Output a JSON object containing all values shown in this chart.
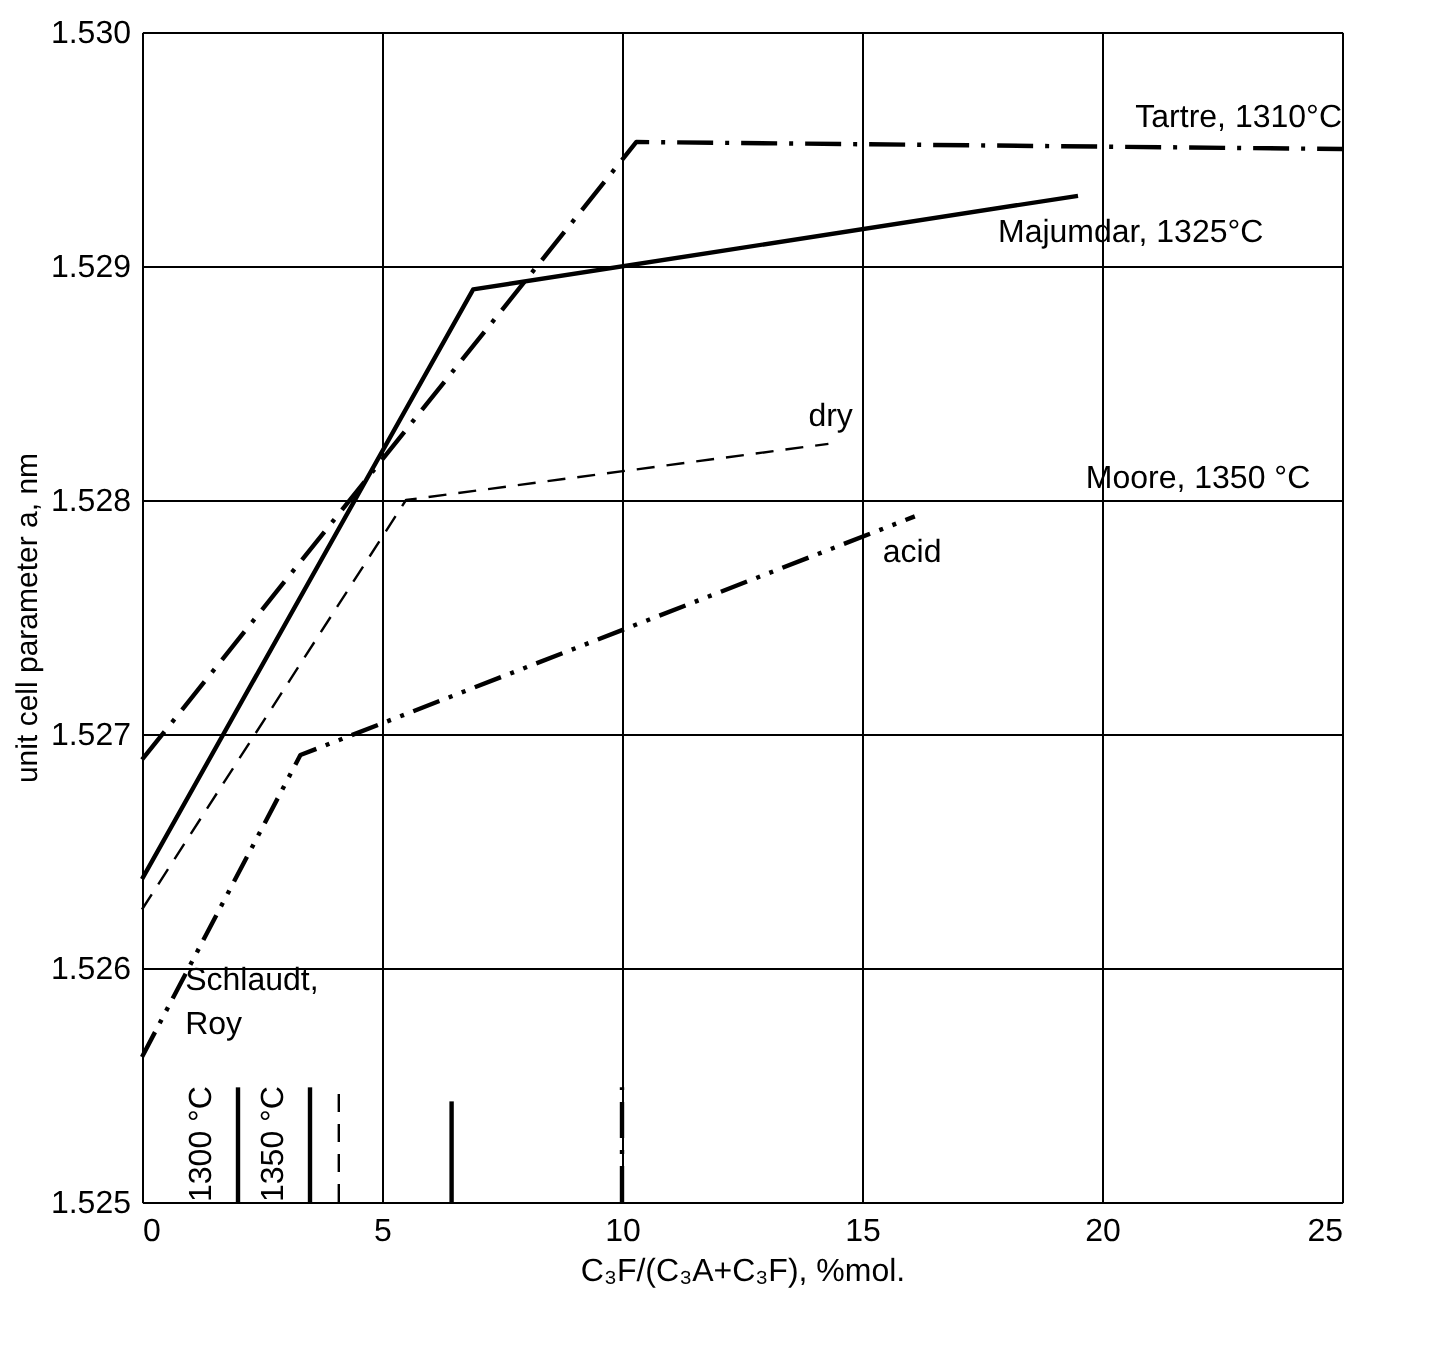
{
  "chart_data": {
    "type": "line",
    "xlabel": "C₃F/(C₃A+C₃F), %mol.",
    "ylabel": "unit cell parameter a, nm",
    "xlim": [
      0,
      25
    ],
    "xticks": [
      0,
      5,
      10,
      15,
      20,
      25
    ],
    "ylim": [
      1.525,
      1.53
    ],
    "yticks": [
      1.525,
      1.526,
      1.527,
      1.528,
      1.529,
      {
        "value": 1.53,
        "label": "1.530"
      }
    ],
    "grid": true,
    "marker": "none",
    "series": [
      {
        "name": "Tartre, 1310°C",
        "color": "#000000",
        "line_style": "dashdot",
        "x": [
          0,
          10.3,
          25
        ],
        "values": [
          1.52689,
          1.52953,
          1.5295
        ]
      },
      {
        "name": "Majumdar, 1325°C",
        "color": "#000000",
        "line_style": "solid",
        "x": [
          0,
          6.9,
          19.5
        ],
        "values": [
          1.52638,
          1.5289,
          1.5293
        ]
      },
      {
        "name": "dry",
        "color": "#000000",
        "line_style": "dashed",
        "x": [
          0,
          5.5,
          14.3
        ],
        "values": [
          1.52625,
          1.528,
          1.52824
        ]
      },
      {
        "name": "acid",
        "color": "#000000",
        "line_style": "dashdotdot",
        "x": [
          0,
          3.3,
          16.1
        ],
        "values": [
          1.52562,
          1.52691,
          1.52793
        ]
      },
      {
        "color": "#000000",
        "line_style": "solid",
        "x": [
          2,
          2
        ],
        "values": [
          1.525,
          1.52549
        ]
      },
      {
        "color": "#000000",
        "line_style": "solid",
        "x": [
          3.5,
          3.5
        ],
        "values": [
          1.525,
          1.52549
        ]
      },
      {
        "color": "#000000",
        "line_style": "dashed",
        "x": [
          4.1,
          4.1
        ],
        "values": [
          1.525,
          1.52549
        ]
      },
      {
        "color": "#000000",
        "line_style": "solid",
        "x": [
          6.45,
          6.45
        ],
        "values": [
          1.525,
          1.52543
        ]
      },
      {
        "color": "#000000",
        "line_style": "dashdot",
        "x": [
          10,
          10
        ],
        "values": [
          1.525,
          1.52549
        ]
      }
    ],
    "annotations": [
      "Moore, 1350 °C",
      "Schlaudt, Roy",
      "1300 °C",
      "1350 °C"
    ]
  }
}
